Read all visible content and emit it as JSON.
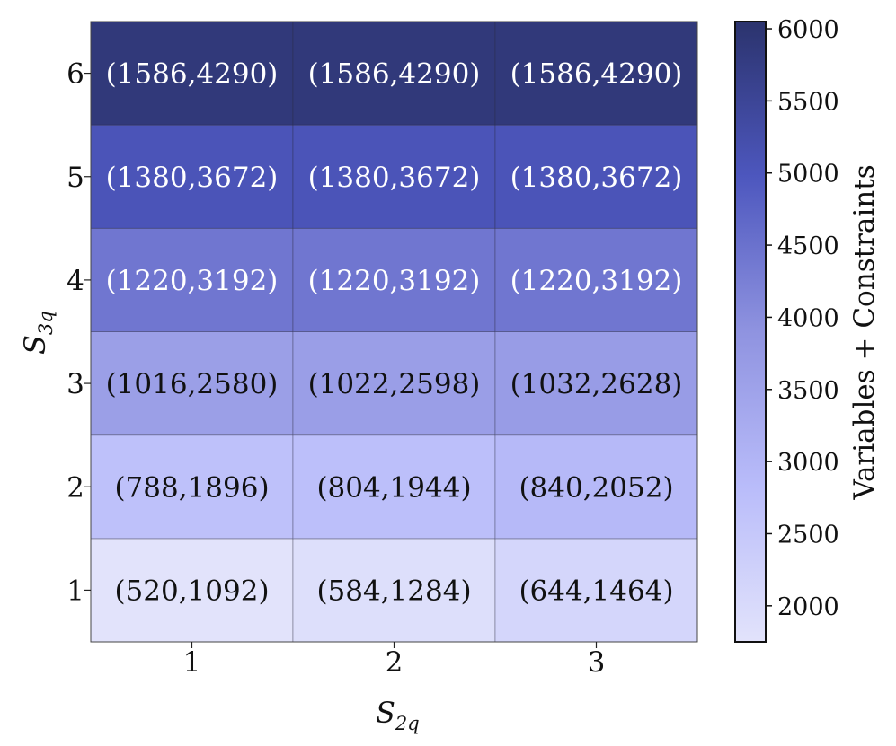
{
  "chart_data": {
    "type": "heatmap",
    "x_axis": {
      "label_main": "S",
      "label_sub": "2q",
      "categories": [
        "1",
        "2",
        "3"
      ]
    },
    "y_axis": {
      "label_main": "S",
      "label_sub": "3q",
      "categories": [
        "1",
        "2",
        "3",
        "4",
        "5",
        "6"
      ]
    },
    "cells": [
      [
        {
          "vars": 520,
          "cons": 1092,
          "text": "(520,1092)"
        },
        {
          "vars": 584,
          "cons": 1284,
          "text": "(584,1284)"
        },
        {
          "vars": 644,
          "cons": 1464,
          "text": "(644,1464)"
        }
      ],
      [
        {
          "vars": 788,
          "cons": 1896,
          "text": "(788,1896)"
        },
        {
          "vars": 804,
          "cons": 1944,
          "text": "(804,1944)"
        },
        {
          "vars": 840,
          "cons": 2052,
          "text": "(840,2052)"
        }
      ],
      [
        {
          "vars": 1016,
          "cons": 2580,
          "text": "(1016,2580)"
        },
        {
          "vars": 1022,
          "cons": 2598,
          "text": "(1022,2598)"
        },
        {
          "vars": 1032,
          "cons": 2628,
          "text": "(1032,2628)"
        }
      ],
      [
        {
          "vars": 1220,
          "cons": 3192,
          "text": "(1220,3192)"
        },
        {
          "vars": 1220,
          "cons": 3192,
          "text": "(1220,3192)"
        },
        {
          "vars": 1220,
          "cons": 3192,
          "text": "(1220,3192)"
        }
      ],
      [
        {
          "vars": 1380,
          "cons": 3672,
          "text": "(1380,3672)"
        },
        {
          "vars": 1380,
          "cons": 3672,
          "text": "(1380,3672)"
        },
        {
          "vars": 1380,
          "cons": 3672,
          "text": "(1380,3672)"
        }
      ],
      [
        {
          "vars": 1586,
          "cons": 4290,
          "text": "(1586,4290)"
        },
        {
          "vars": 1586,
          "cons": 4290,
          "text": "(1586,4290)"
        },
        {
          "vars": 1586,
          "cons": 4290,
          "text": "(1586,4290)"
        }
      ]
    ],
    "colorbar": {
      "label": "Variables + Constraints",
      "range": [
        1750,
        6050
      ],
      "ticks": [
        2000,
        2500,
        3000,
        3500,
        4000,
        4500,
        5000,
        5500,
        6000
      ],
      "colors": [
        "#e2e3fb",
        "#b9bcfa",
        "#8f93e0",
        "#4d57be",
        "#2b336d"
      ]
    },
    "grid": false
  }
}
